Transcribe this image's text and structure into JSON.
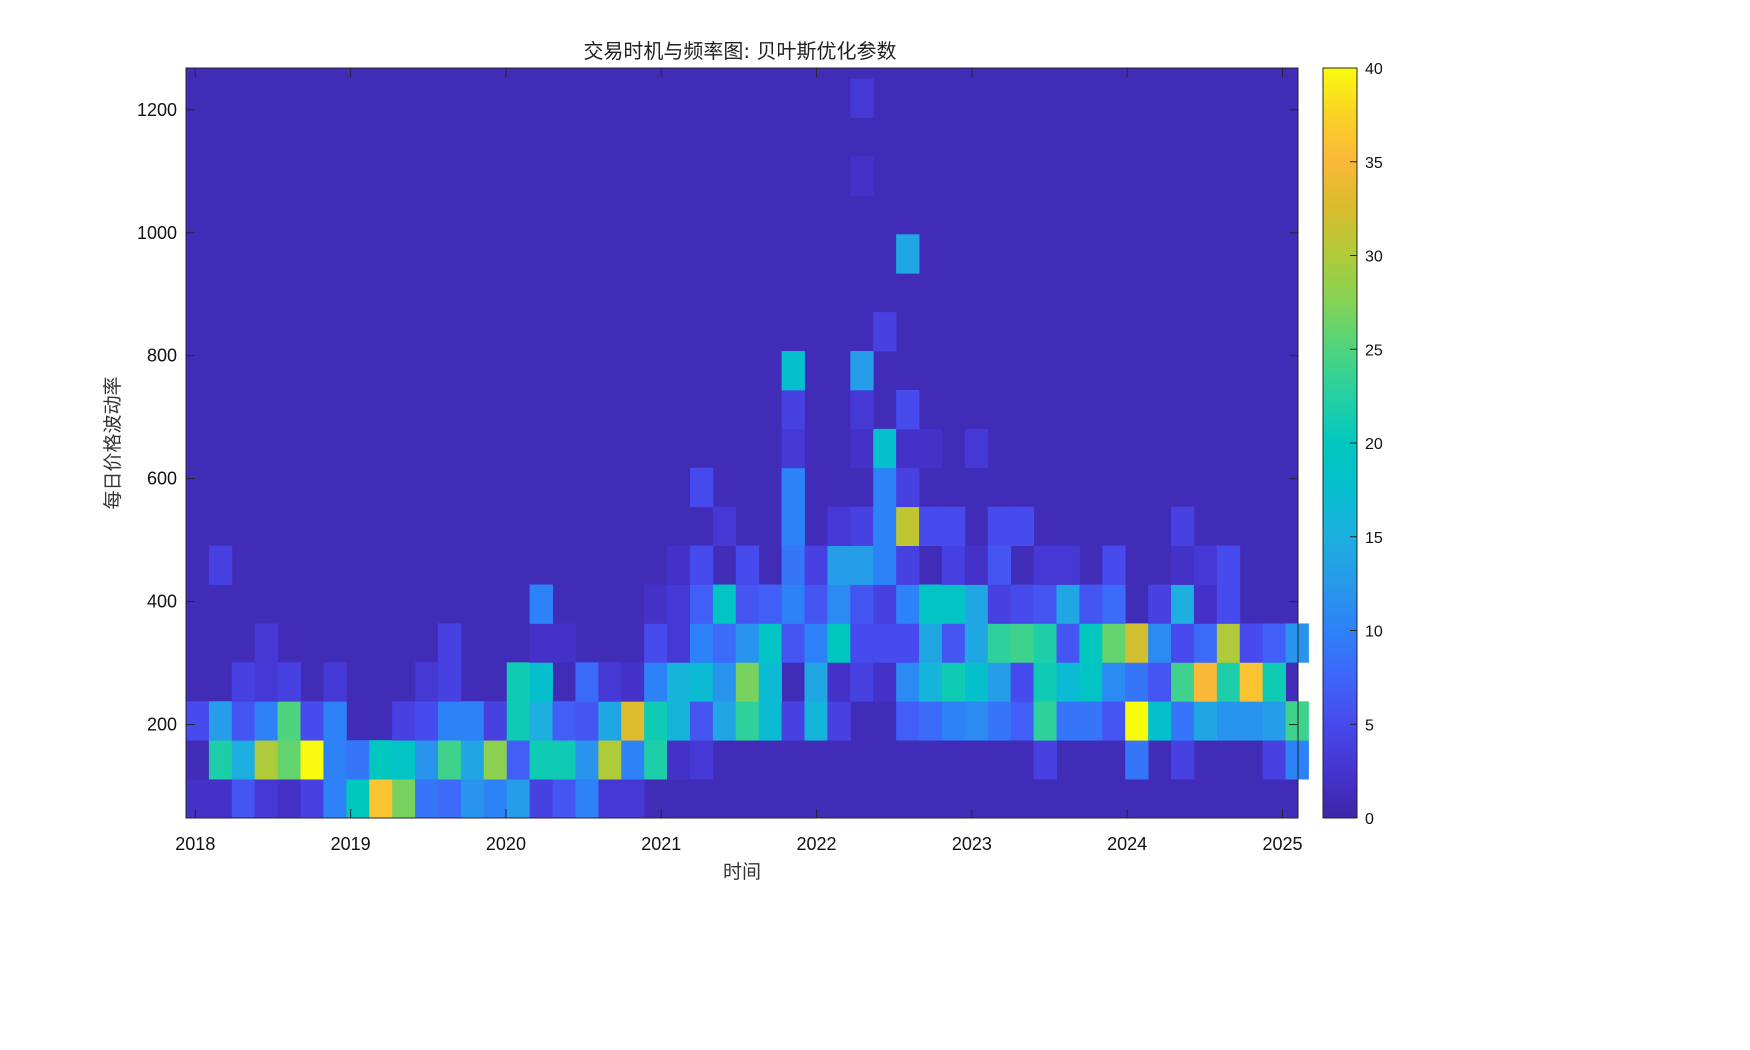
{
  "chart_data": {
    "type": "heatmap",
    "title": "交易时机与频率图: 贝叶斯优化参数",
    "xlabel": "时间",
    "ylabel": "每日价格波动率",
    "x_range": [
      2017.94,
      2025.1
    ],
    "y_range": [
      48,
      1268
    ],
    "x_ticks": [
      "2018",
      "2019",
      "2020",
      "2021",
      "2022",
      "2023",
      "2024",
      "2025"
    ],
    "y_ticks": [
      "200",
      "400",
      "600",
      "800",
      "1000",
      "1200"
    ],
    "colorbar": {
      "range": [
        0,
        40
      ],
      "ticks": [
        "0",
        "5",
        "10",
        "15",
        "20",
        "25",
        "30",
        "35",
        "40"
      ],
      "colormap": "parula"
    },
    "bins": {
      "x_start": 2017.94,
      "x_width": 0.1475,
      "x_count": 49,
      "y_start": 48,
      "y_width": 63.3,
      "y_count": 19
    },
    "background_count": 1,
    "cells": [
      [
        0,
        0,
        2
      ],
      [
        1,
        0,
        2
      ],
      [
        2,
        0,
        6
      ],
      [
        3,
        0,
        3
      ],
      [
        4,
        0,
        2
      ],
      [
        5,
        0,
        4
      ],
      [
        6,
        0,
        10
      ],
      [
        7,
        0,
        20
      ],
      [
        8,
        0,
        36
      ],
      [
        9,
        0,
        27
      ],
      [
        10,
        0,
        9
      ],
      [
        11,
        0,
        8
      ],
      [
        12,
        0,
        12
      ],
      [
        13,
        0,
        10
      ],
      [
        14,
        0,
        13
      ],
      [
        15,
        0,
        4
      ],
      [
        16,
        0,
        6
      ],
      [
        17,
        0,
        10
      ],
      [
        18,
        0,
        3
      ],
      [
        19,
        0,
        3
      ],
      [
        0,
        1,
        1
      ],
      [
        1,
        1,
        22
      ],
      [
        2,
        1,
        15
      ],
      [
        3,
        1,
        30
      ],
      [
        4,
        1,
        26
      ],
      [
        5,
        1,
        40
      ],
      [
        6,
        1,
        10
      ],
      [
        7,
        1,
        9
      ],
      [
        8,
        1,
        20
      ],
      [
        9,
        1,
        19
      ],
      [
        10,
        1,
        12
      ],
      [
        11,
        1,
        24
      ],
      [
        12,
        1,
        14
      ],
      [
        13,
        1,
        28
      ],
      [
        14,
        1,
        7
      ],
      [
        15,
        1,
        21
      ],
      [
        16,
        1,
        21
      ],
      [
        17,
        1,
        12
      ],
      [
        18,
        1,
        30
      ],
      [
        19,
        1,
        10
      ],
      [
        20,
        1,
        22
      ],
      [
        21,
        1,
        2
      ],
      [
        22,
        1,
        3
      ],
      [
        37,
        1,
        4
      ],
      [
        41,
        1,
        9
      ],
      [
        43,
        1,
        4
      ],
      [
        47,
        1,
        4
      ],
      [
        48,
        1,
        10
      ],
      [
        0,
        2,
        5
      ],
      [
        1,
        2,
        13
      ],
      [
        2,
        2,
        6
      ],
      [
        3,
        2,
        10
      ],
      [
        4,
        2,
        25
      ],
      [
        5,
        2,
        5
      ],
      [
        6,
        2,
        10
      ],
      [
        9,
        2,
        4
      ],
      [
        10,
        2,
        5
      ],
      [
        11,
        2,
        10
      ],
      [
        12,
        2,
        10
      ],
      [
        13,
        2,
        4
      ],
      [
        14,
        2,
        21
      ],
      [
        15,
        2,
        15
      ],
      [
        16,
        2,
        7
      ],
      [
        17,
        2,
        6
      ],
      [
        18,
        2,
        14
      ],
      [
        19,
        2,
        33
      ],
      [
        20,
        2,
        21
      ],
      [
        21,
        2,
        16
      ],
      [
        22,
        2,
        6
      ],
      [
        23,
        2,
        14
      ],
      [
        24,
        2,
        23
      ],
      [
        25,
        2,
        17
      ],
      [
        26,
        2,
        4
      ],
      [
        27,
        2,
        16
      ],
      [
        28,
        2,
        4
      ],
      [
        31,
        2,
        7
      ],
      [
        32,
        2,
        8
      ],
      [
        33,
        2,
        10
      ],
      [
        34,
        2,
        11
      ],
      [
        35,
        2,
        9
      ],
      [
        36,
        2,
        7
      ],
      [
        37,
        2,
        23
      ],
      [
        38,
        2,
        9
      ],
      [
        39,
        2,
        9
      ],
      [
        40,
        2,
        6
      ],
      [
        41,
        2,
        40
      ],
      [
        42,
        2,
        18
      ],
      [
        43,
        2,
        9
      ],
      [
        44,
        2,
        14
      ],
      [
        45,
        2,
        12
      ],
      [
        46,
        2,
        12
      ],
      [
        47,
        2,
        13
      ],
      [
        48,
        2,
        24
      ],
      [
        2,
        3,
        4
      ],
      [
        3,
        3,
        3
      ],
      [
        4,
        3,
        4
      ],
      [
        6,
        3,
        3
      ],
      [
        10,
        3,
        3
      ],
      [
        11,
        3,
        4
      ],
      [
        14,
        3,
        21
      ],
      [
        15,
        3,
        18
      ],
      [
        17,
        3,
        8
      ],
      [
        18,
        3,
        3
      ],
      [
        19,
        3,
        2
      ],
      [
        20,
        3,
        10
      ],
      [
        21,
        3,
        16
      ],
      [
        22,
        3,
        17
      ],
      [
        23,
        3,
        12
      ],
      [
        24,
        3,
        27
      ],
      [
        25,
        3,
        17
      ],
      [
        27,
        3,
        14
      ],
      [
        28,
        3,
        2
      ],
      [
        29,
        3,
        4
      ],
      [
        30,
        3,
        2
      ],
      [
        31,
        3,
        11
      ],
      [
        32,
        3,
        16
      ],
      [
        33,
        3,
        21
      ],
      [
        34,
        3,
        18
      ],
      [
        35,
        3,
        13
      ],
      [
        36,
        3,
        5
      ],
      [
        37,
        3,
        21
      ],
      [
        38,
        3,
        17
      ],
      [
        39,
        3,
        19
      ],
      [
        40,
        3,
        11
      ],
      [
        41,
        3,
        9
      ],
      [
        42,
        3,
        6
      ],
      [
        43,
        3,
        24
      ],
      [
        44,
        3,
        35
      ],
      [
        45,
        3,
        22
      ],
      [
        46,
        3,
        36
      ],
      [
        47,
        3,
        21
      ],
      [
        3,
        4,
        3
      ],
      [
        11,
        4,
        4
      ],
      [
        15,
        4,
        2
      ],
      [
        16,
        4,
        2
      ],
      [
        20,
        4,
        5
      ],
      [
        21,
        4,
        3
      ],
      [
        22,
        4,
        10
      ],
      [
        23,
        4,
        8
      ],
      [
        24,
        4,
        12
      ],
      [
        25,
        4,
        19
      ],
      [
        26,
        4,
        6
      ],
      [
        27,
        4,
        10
      ],
      [
        28,
        4,
        20
      ],
      [
        29,
        4,
        5
      ],
      [
        30,
        4,
        5
      ],
      [
        31,
        4,
        5
      ],
      [
        32,
        4,
        14
      ],
      [
        33,
        4,
        6
      ],
      [
        34,
        4,
        14
      ],
      [
        35,
        4,
        23
      ],
      [
        36,
        4,
        24
      ],
      [
        37,
        4,
        22
      ],
      [
        38,
        4,
        6
      ],
      [
        39,
        4,
        20
      ],
      [
        40,
        4,
        26
      ],
      [
        41,
        4,
        32
      ],
      [
        42,
        4,
        11
      ],
      [
        43,
        4,
        5
      ],
      [
        44,
        4,
        8
      ],
      [
        45,
        4,
        30
      ],
      [
        46,
        4,
        5
      ],
      [
        47,
        4,
        7
      ],
      [
        48,
        4,
        12
      ],
      [
        15,
        5,
        10
      ],
      [
        20,
        5,
        2
      ],
      [
        21,
        5,
        3
      ],
      [
        22,
        5,
        7
      ],
      [
        23,
        5,
        19
      ],
      [
        24,
        5,
        6
      ],
      [
        25,
        5,
        7
      ],
      [
        26,
        5,
        10
      ],
      [
        27,
        5,
        6
      ],
      [
        28,
        5,
        11
      ],
      [
        29,
        5,
        6
      ],
      [
        30,
        5,
        4
      ],
      [
        31,
        5,
        10
      ],
      [
        32,
        5,
        19
      ],
      [
        33,
        5,
        19
      ],
      [
        34,
        5,
        14
      ],
      [
        35,
        5,
        4
      ],
      [
        36,
        5,
        5
      ],
      [
        37,
        5,
        6
      ],
      [
        38,
        5,
        14
      ],
      [
        39,
        5,
        6
      ],
      [
        40,
        5,
        8
      ],
      [
        42,
        5,
        4
      ],
      [
        43,
        5,
        15
      ],
      [
        44,
        5,
        2
      ],
      [
        45,
        5,
        5
      ],
      [
        1,
        6,
        4
      ],
      [
        21,
        6,
        2
      ],
      [
        22,
        6,
        5
      ],
      [
        24,
        6,
        5
      ],
      [
        26,
        6,
        9
      ],
      [
        27,
        6,
        4
      ],
      [
        28,
        6,
        13
      ],
      [
        29,
        6,
        13
      ],
      [
        30,
        6,
        10
      ],
      [
        31,
        6,
        4
      ],
      [
        33,
        6,
        4
      ],
      [
        34,
        6,
        2
      ],
      [
        35,
        6,
        6
      ],
      [
        37,
        6,
        3
      ],
      [
        38,
        6,
        3
      ],
      [
        40,
        6,
        5
      ],
      [
        43,
        6,
        2
      ],
      [
        44,
        6,
        3
      ],
      [
        45,
        6,
        5
      ],
      [
        23,
        7,
        3
      ],
      [
        26,
        7,
        10
      ],
      [
        28,
        7,
        3
      ],
      [
        29,
        7,
        4
      ],
      [
        30,
        7,
        10
      ],
      [
        31,
        7,
        31
      ],
      [
        32,
        7,
        5
      ],
      [
        33,
        7,
        5
      ],
      [
        35,
        7,
        5
      ],
      [
        36,
        7,
        5
      ],
      [
        43,
        7,
        4
      ],
      [
        22,
        8,
        5
      ],
      [
        26,
        8,
        10
      ],
      [
        30,
        8,
        10
      ],
      [
        31,
        8,
        4
      ],
      [
        26,
        9,
        3
      ],
      [
        29,
        9,
        2
      ],
      [
        30,
        9,
        18
      ],
      [
        31,
        9,
        2
      ],
      [
        32,
        9,
        2
      ],
      [
        34,
        9,
        3
      ],
      [
        26,
        10,
        4
      ],
      [
        29,
        10,
        3
      ],
      [
        31,
        10,
        5
      ],
      [
        26,
        11,
        18
      ],
      [
        29,
        11,
        13
      ],
      [
        30,
        12,
        4
      ],
      [
        31,
        14,
        14
      ],
      [
        29,
        16,
        2
      ],
      [
        29,
        18,
        3
      ]
    ]
  }
}
